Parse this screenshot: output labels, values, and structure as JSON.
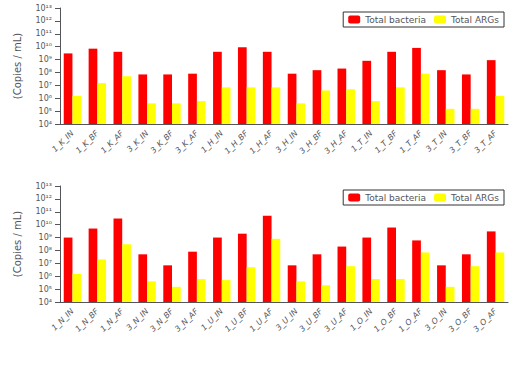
{
  "chart_data": [
    {
      "type": "bar",
      "categories": [
        "1_K_IN",
        "1_K_BF",
        "1_K_AF",
        "3_K_IN",
        "3_K_BF",
        "3_K_AF",
        "1_H_IN",
        "1_H_BF",
        "1_H_AF",
        "3_H_IN",
        "3_H_BF",
        "3_H_AF",
        "1_T_IN",
        "1_T_BF",
        "1_T_AF",
        "3_T_IN",
        "3_T_BF",
        "3_T_AF"
      ],
      "series": [
        {
          "name": "Total bacteria",
          "color": "#FF0000",
          "values": [
            3000000000.0,
            7000000000.0,
            4000000000.0,
            70000000.0,
            70000000.0,
            80000000.0,
            4000000000.0,
            9000000000.0,
            4000000000.0,
            80000000.0,
            150000000.0,
            200000000.0,
            800000000.0,
            4000000000.0,
            8000000000.0,
            150000000.0,
            70000000.0,
            900000000.0
          ]
        },
        {
          "name": "Total ARGs",
          "color": "#FFFF00",
          "values": [
            1500000.0,
            15000000.0,
            50000000.0,
            400000.0,
            400000.0,
            600000.0,
            7000000.0,
            7000000.0,
            7000000.0,
            400000.0,
            4000000.0,
            5000000.0,
            600000.0,
            7000000.0,
            80000000.0,
            150000.0,
            150000.0,
            1500000.0
          ]
        }
      ],
      "ylabel": "(Copies / mL)",
      "log": "y",
      "ylim": [
        10000.0,
        10000000000000.0
      ],
      "yticks": [
        {
          "value": 10000.0,
          "label": "10⁴"
        },
        {
          "value": 100000.0,
          "label": "10⁵"
        },
        {
          "value": 1000000.0,
          "label": "10⁶"
        },
        {
          "value": 10000000.0,
          "label": "10⁷"
        },
        {
          "value": 100000000.0,
          "label": "10⁸"
        },
        {
          "value": 1000000000.0,
          "label": "10⁹"
        },
        {
          "value": 10000000000.0,
          "label": "10¹⁰"
        },
        {
          "value": 100000000000.0,
          "label": "10¹¹"
        },
        {
          "value": 1000000000000.0,
          "label": "10¹²"
        },
        {
          "value": 10000000000000.0,
          "label": "10¹³"
        }
      ],
      "legend": "upper right",
      "grid": false
    },
    {
      "type": "bar",
      "categories": [
        "1_N_IN",
        "1_N_BF",
        "1_N_AF",
        "3_N_IN",
        "3_N_BF",
        "3_N_AF",
        "1_U_IN",
        "1_U_BF",
        "1_U_AF",
        "3_U_IN",
        "3_U_BF",
        "3_U_AF",
        "1_O_IN",
        "1_O_BF",
        "1_O_AF",
        "3_O_IN",
        "3_O_BF",
        "3_O_AF"
      ],
      "series": [
        {
          "name": "Total bacteria",
          "color": "#FF0000",
          "values": [
            1000000000.0,
            5000000000.0,
            30000000000.0,
            50000000.0,
            7000000.0,
            80000000.0,
            1000000000.0,
            2000000000.0,
            50000000000.0,
            7000000.0,
            50000000.0,
            200000000.0,
            1000000000.0,
            6000000000.0,
            600000000.0,
            7000000.0,
            50000000.0,
            3000000000.0
          ]
        },
        {
          "name": "Total ARGs",
          "color": "#FFFF00",
          "values": [
            1500000.0,
            20000000.0,
            300000000.0,
            400000.0,
            150000.0,
            600000.0,
            500000.0,
            5000000.0,
            800000000.0,
            400000.0,
            200000.0,
            6000000.0,
            600000.0,
            600000.0,
            70000000.0,
            150000.0,
            6000000.0,
            70000000.0
          ]
        }
      ],
      "ylabel": "(Copies / mL)",
      "log": "y",
      "ylim": [
        10000.0,
        10000000000000.0
      ],
      "yticks": [
        {
          "value": 10000.0,
          "label": "10⁴"
        },
        {
          "value": 100000.0,
          "label": "10⁵"
        },
        {
          "value": 1000000.0,
          "label": "10⁶"
        },
        {
          "value": 10000000.0,
          "label": "10⁷"
        },
        {
          "value": 100000000.0,
          "label": "10⁸"
        },
        {
          "value": 1000000000.0,
          "label": "10⁹"
        },
        {
          "value": 10000000000.0,
          "label": "10¹⁰"
        },
        {
          "value": 100000000000.0,
          "label": "10¹¹"
        },
        {
          "value": 1000000000000.0,
          "label": "10¹²"
        },
        {
          "value": 10000000000000.0,
          "label": "10¹³"
        }
      ],
      "legend": "upper right",
      "grid": false
    }
  ]
}
